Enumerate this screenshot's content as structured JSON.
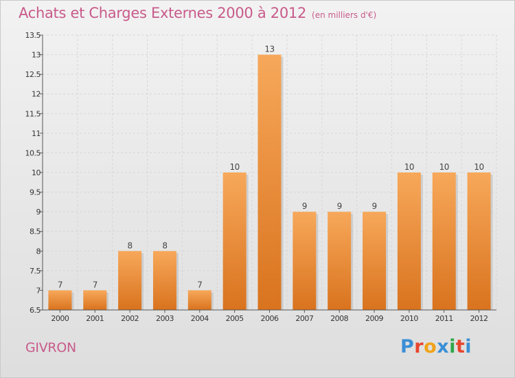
{
  "colors": {
    "title": "#c85a8a",
    "bar_top": "#f7a85a",
    "bar_bottom": "#d9731e",
    "logo": [
      "#3a8fd6",
      "#e8462e",
      "#f0a31a",
      "#3a8fd6",
      "#2ea84a",
      "#e8462e",
      "#3a8fd6"
    ]
  },
  "commune": "GIVRON",
  "logo_text": "Proxiti",
  "chart_data": {
    "type": "bar",
    "title": "Achats et Charges Externes 2000 à 2012",
    "subtitle": "(en milliers d'€)",
    "categories": [
      "2000",
      "2001",
      "2002",
      "2003",
      "2004",
      "2005",
      "2006",
      "2007",
      "2008",
      "2009",
      "2010",
      "2011",
      "2012"
    ],
    "values": [
      7,
      7,
      8,
      8,
      7,
      10,
      13,
      9,
      9,
      9,
      10,
      10,
      10
    ],
    "data_labels": [
      "7",
      "7",
      "8",
      "8",
      "7",
      "10",
      "13",
      "9",
      "9",
      "9",
      "10",
      "10",
      "10"
    ],
    "yticks": [
      "6.5",
      "7",
      "7.5",
      "8",
      "8.5",
      "9",
      "9.5",
      "10",
      "10.5",
      "11",
      "11.5",
      "12",
      "12.5",
      "13",
      "13.5"
    ],
    "ylim": [
      6.5,
      13.5
    ],
    "grid": true,
    "legend": "none"
  }
}
